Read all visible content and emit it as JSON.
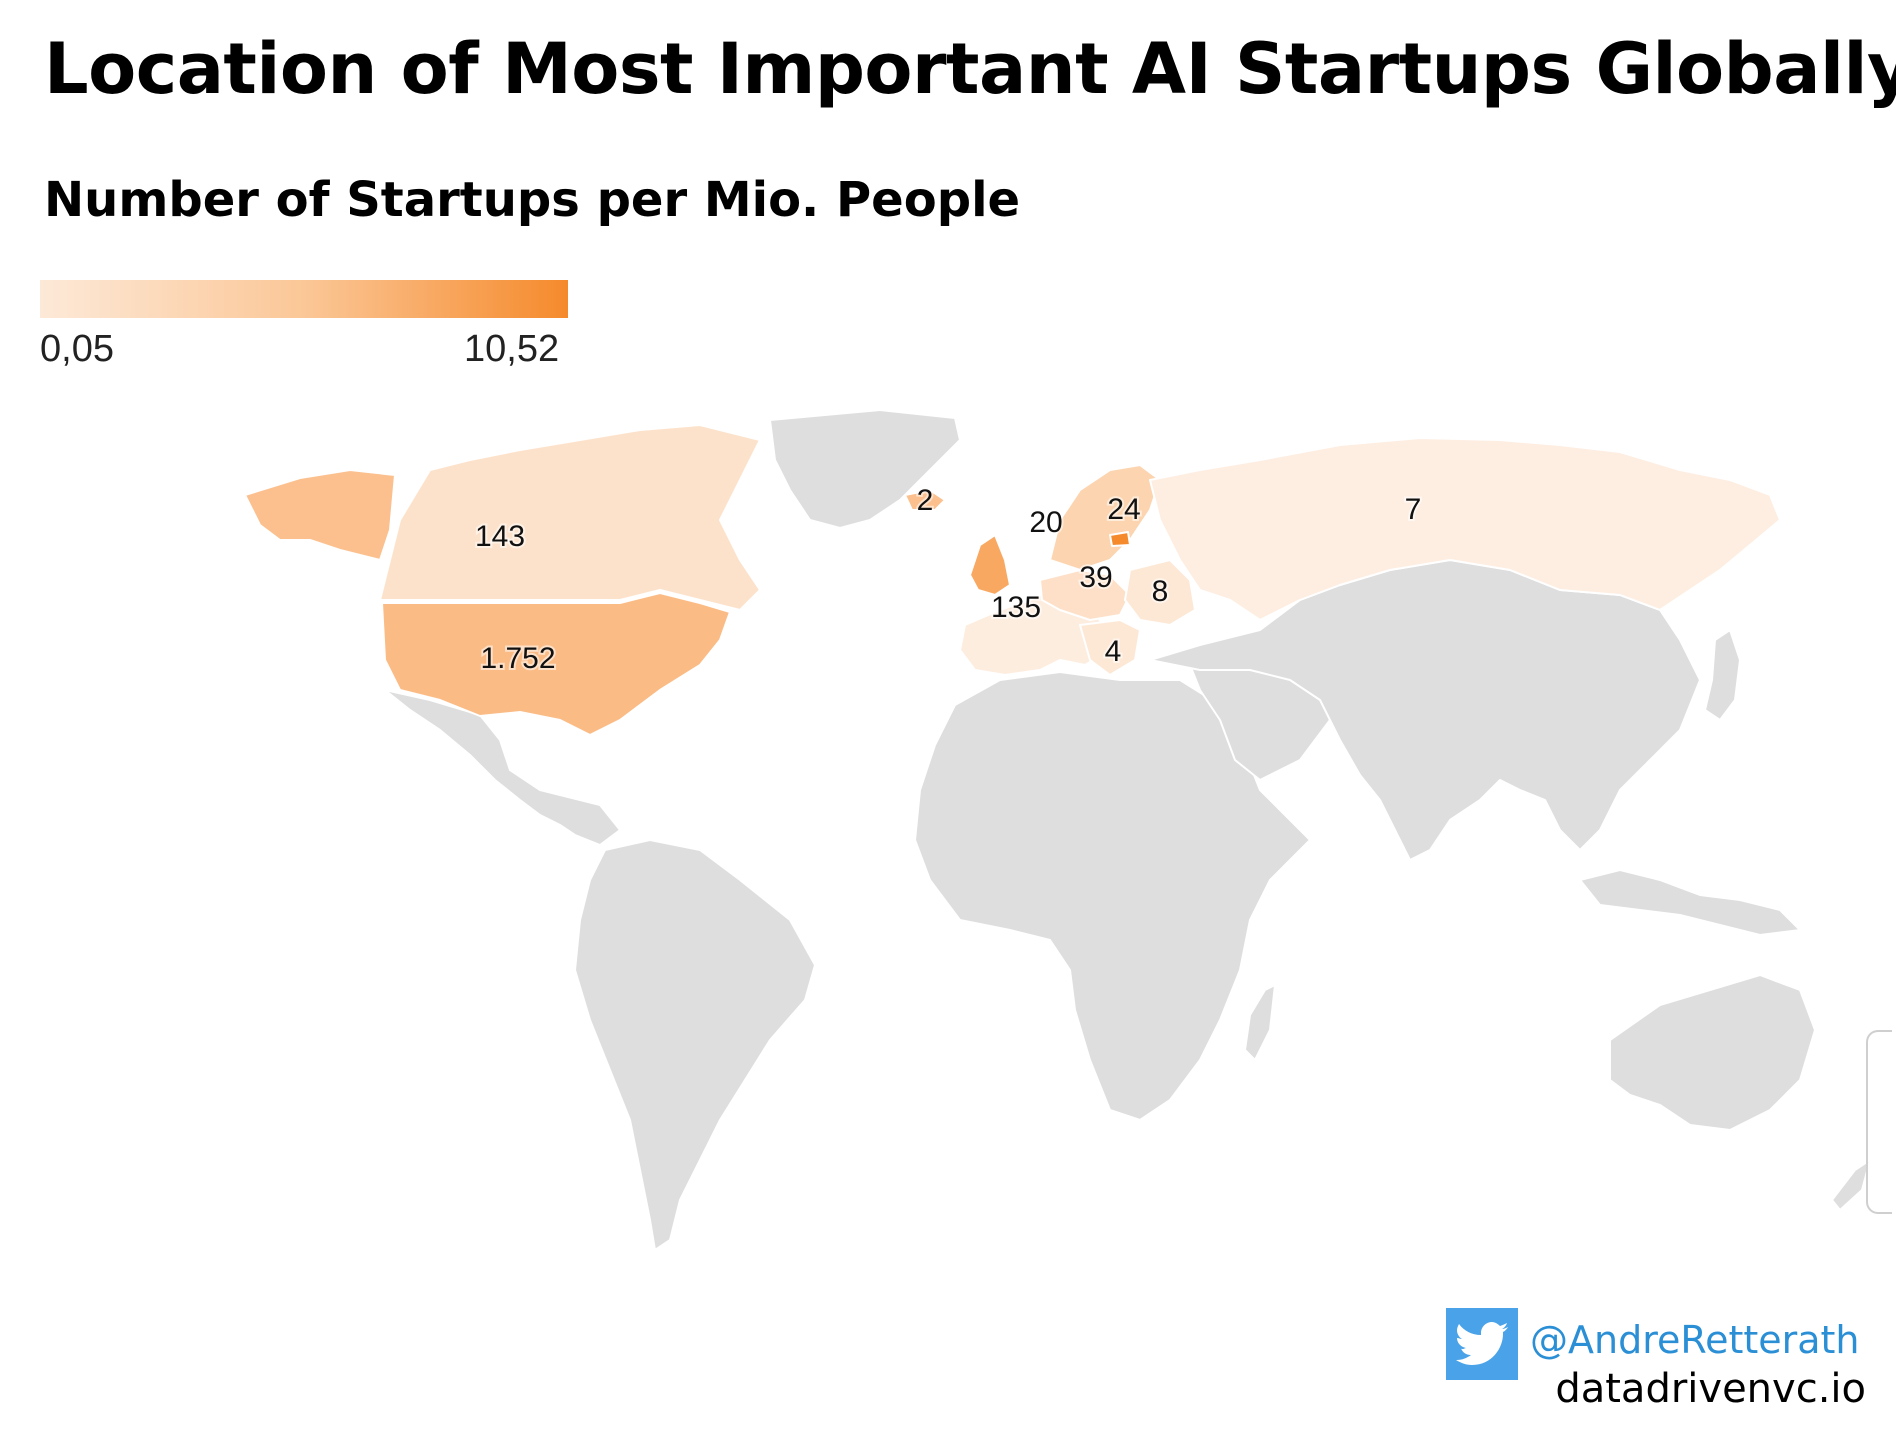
{
  "header": {
    "title": "Location of Most Important AI Startups Globally",
    "subtitle": "Number of Startups per Mio. People"
  },
  "legend": {
    "min_label": "0,05",
    "max_label": "10,52",
    "min_color": "#fde9d8",
    "max_color": "#f58a2c"
  },
  "colors": {
    "no_data": "#dedede",
    "border": "#ffffff"
  },
  "map_data": {
    "countries": [
      {
        "name": "United States",
        "label": "1.752",
        "fill": "#fbbb85"
      },
      {
        "name": "Canada",
        "label": "143",
        "fill": "#fde2cb"
      },
      {
        "name": "Iceland",
        "label": "2",
        "fill": "#fbc08e"
      },
      {
        "name": "United Kingdom",
        "label": "135",
        "fill": "#f9a862"
      },
      {
        "name": "Sweden",
        "label": "20",
        "fill": "#fcd4b0"
      },
      {
        "name": "Estonia",
        "label": "24",
        "fill": "#f58a2c"
      },
      {
        "name": "Germany",
        "label": "39",
        "fill": "#fde0c7"
      },
      {
        "name": "Poland",
        "label": "8",
        "fill": "#fde8d6"
      },
      {
        "name": "Greece",
        "label": "4",
        "fill": "#fde8d6"
      },
      {
        "name": "Russia",
        "label": "7",
        "fill": "#feeee2"
      }
    ]
  },
  "credit": {
    "icon": "twitter-bird-icon",
    "handle": "@AndreRetterath",
    "site": "datadrivenvc.io"
  }
}
